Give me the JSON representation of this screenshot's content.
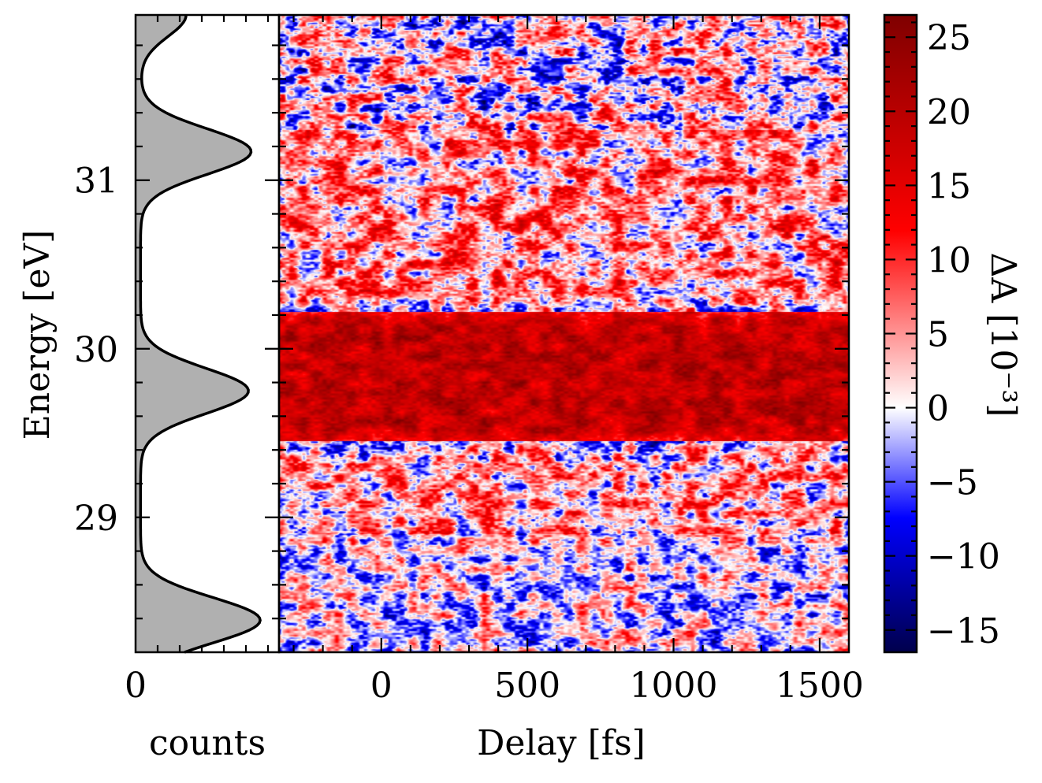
{
  "chart_data": [
    {
      "type": "area",
      "panel": "spectrum",
      "xlabel": "counts",
      "ylabel": "Energy [eV]",
      "ylim": [
        28.2,
        31.98
      ],
      "x_tick_labels": [
        "0"
      ],
      "y_ticks": [
        29,
        30,
        31
      ],
      "y_tick_labels": [
        "29",
        "30",
        "31"
      ],
      "peaks": [
        {
          "energy": 28.39,
          "counts": 0.92
        },
        {
          "energy": 29.75,
          "counts": 0.83
        },
        {
          "energy": 31.17,
          "counts": 0.85
        }
      ],
      "fill_color": "#b0b0b0",
      "line_color": "#000000"
    },
    {
      "type": "heatmap",
      "panel": "transient-absorption",
      "xlabel": "Delay [fs]",
      "x_ticks": [
        0,
        500,
        1000,
        1500
      ],
      "x_tick_labels": [
        "0",
        "500",
        "1000",
        "1500"
      ],
      "xlim": [
        -350,
        1600
      ],
      "ylim": [
        28.2,
        31.98
      ],
      "colorbar": {
        "label": "ΔA [10⁻³]",
        "range": [
          -16.5,
          26.5
        ],
        "ticks": [
          -15,
          -10,
          -5,
          0,
          5,
          10,
          15,
          20,
          25
        ],
        "tick_labels": [
          "−15",
          "−10",
          "−5",
          "0",
          "5",
          "10",
          "15",
          "20",
          "25"
        ],
        "colormap": "seismic",
        "colors": [
          "#00004c",
          "#0000ff",
          "#ffffff",
          "#ff0000",
          "#7f0000"
        ]
      },
      "features": [
        {
          "description": "strong positive band",
          "energy_range": [
            29.45,
            30.2
          ],
          "value": 20
        },
        {
          "description": "weak positive region",
          "energy_range": [
            30.2,
            31.3
          ],
          "value": 6
        },
        {
          "description": "mixed noise",
          "energy_range": [
            28.2,
            29.45
          ],
          "value": 0
        }
      ]
    }
  ]
}
